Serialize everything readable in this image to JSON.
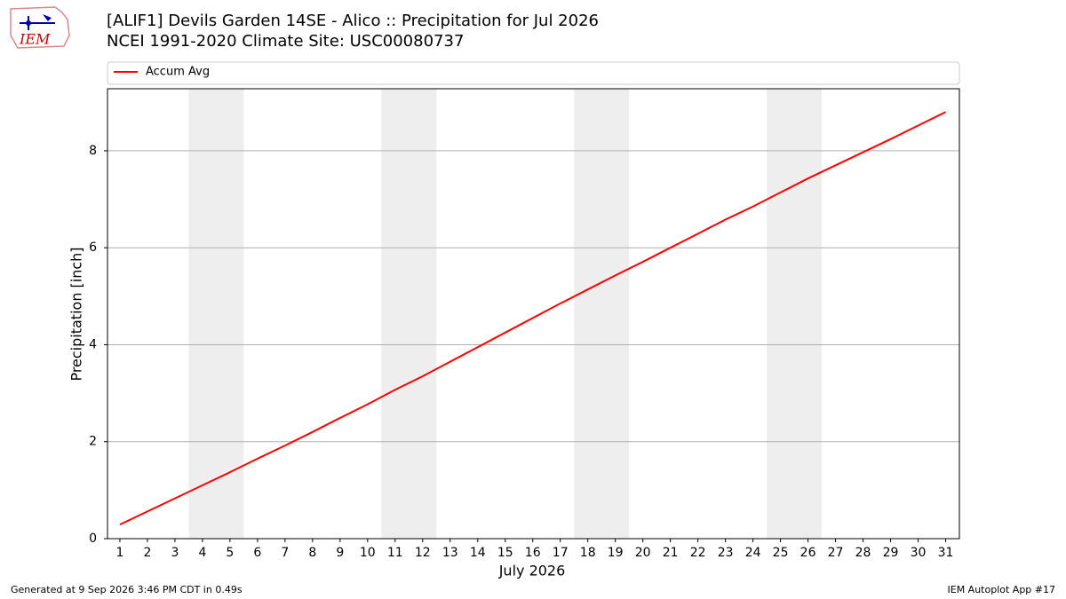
{
  "chart_data": {
    "type": "line",
    "title": "[ALIF1] Devils Garden 14SE - Alico :: Precipitation for Jul 2026",
    "subtitle": "NCEI 1991-2020 Climate Site: USC00080737",
    "xlabel": "July 2026",
    "ylabel": "Precipitation [inch]",
    "x": [
      1,
      2,
      3,
      4,
      5,
      6,
      7,
      8,
      9,
      10,
      11,
      12,
      13,
      14,
      15,
      16,
      17,
      18,
      19,
      20,
      21,
      22,
      23,
      24,
      25,
      26,
      27,
      28,
      29,
      30,
      31
    ],
    "series": [
      {
        "name": "Accum Avg",
        "color": "#ff0000",
        "values": [
          0.29,
          0.56,
          0.83,
          1.1,
          1.37,
          1.65,
          1.92,
          2.2,
          2.49,
          2.77,
          3.07,
          3.35,
          3.65,
          3.95,
          4.25,
          4.55,
          4.85,
          5.14,
          5.43,
          5.71,
          6.0,
          6.29,
          6.58,
          6.85,
          7.14,
          7.43,
          7.7,
          7.97,
          8.24,
          8.52,
          8.8
        ]
      }
    ],
    "shaded_spans": [
      [
        3.5,
        5.5
      ],
      [
        10.5,
        12.5
      ],
      [
        17.5,
        19.5
      ],
      [
        24.5,
        26.5
      ]
    ],
    "shade_color": "#eeeeee",
    "xlim": [
      0.55,
      31.5
    ],
    "ylim": [
      0,
      9.28
    ],
    "xticks": [
      1,
      2,
      3,
      4,
      5,
      6,
      7,
      8,
      9,
      10,
      11,
      12,
      13,
      14,
      15,
      16,
      17,
      18,
      19,
      20,
      21,
      22,
      23,
      24,
      25,
      26,
      27,
      28,
      29,
      30,
      31
    ],
    "yticks": [
      0,
      2,
      4,
      6,
      8
    ],
    "grid": true,
    "legend": "top"
  },
  "logo_text": "IEM",
  "footer_left": "Generated at 9 Sep 2026 3:46 PM CDT in 0.49s",
  "footer_right": "IEM Autoplot App #17"
}
